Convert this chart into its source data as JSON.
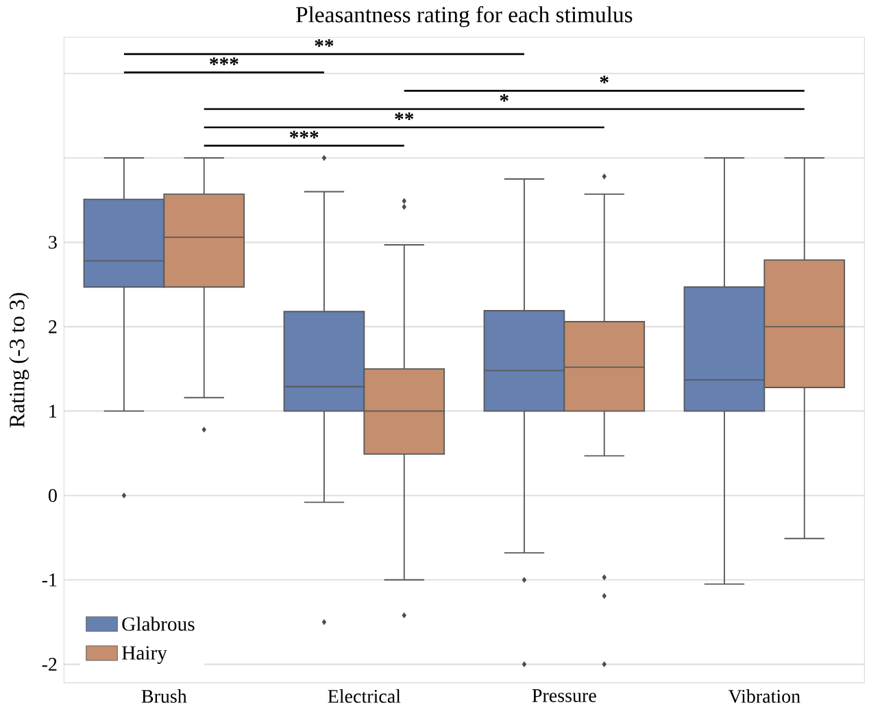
{
  "chart_data": {
    "type": "box",
    "title": "Pleasantness rating for each stimulus",
    "ylabel": "Rating (-3 to 3)",
    "categories": [
      "Brush",
      "Electrical",
      "Pressure",
      "Vibration"
    ],
    "series": [
      {
        "name": "Glabrous",
        "color": "#6680b0",
        "boxes": [
          {
            "low": 1.0,
            "q1": 2.47,
            "median": 2.78,
            "q3": 3.51,
            "high": 4.0,
            "outliers": [
              0.0
            ]
          },
          {
            "low": -0.08,
            "q1": 1.0,
            "median": 1.29,
            "q3": 2.18,
            "high": 3.6,
            "outliers": [
              4.0,
              -1.5
            ]
          },
          {
            "low": -0.68,
            "q1": 1.0,
            "median": 1.48,
            "q3": 2.19,
            "high": 3.75,
            "outliers": [
              -1.0,
              -2.0
            ]
          },
          {
            "low": -1.05,
            "q1": 1.0,
            "median": 1.37,
            "q3": 2.47,
            "high": 4.0
          }
        ]
      },
      {
        "name": "Hairy",
        "color": "#c58e6e",
        "boxes": [
          {
            "low": 1.16,
            "q1": 2.47,
            "median": 3.06,
            "q3": 3.57,
            "high": 4.0,
            "outliers": [
              0.78
            ]
          },
          {
            "low": -1.0,
            "q1": 0.49,
            "median": 1.0,
            "q3": 1.5,
            "high": 2.97,
            "outliers": [
              3.49,
              3.42,
              -1.42
            ]
          },
          {
            "low": 0.47,
            "q1": 1.0,
            "median": 1.52,
            "q3": 2.06,
            "high": 3.57,
            "outliers": [
              3.78,
              -0.97,
              -1.19,
              -2.0
            ]
          },
          {
            "low": -0.51,
            "q1": 1.28,
            "median": 2.0,
            "q3": 2.79,
            "high": 4.0
          }
        ]
      }
    ],
    "ylim": [
      -2.22,
      5.43
    ],
    "yticks": [
      -2,
      -1,
      0,
      1,
      2,
      3,
      {
        "value": 4,
        "label": null
      },
      {
        "value": 5,
        "label": null
      }
    ],
    "grid": "y",
    "legend": "bottom left",
    "marker": "diamond",
    "annotations": [
      "**",
      "***",
      "*",
      "*",
      "**",
      "***"
    ]
  }
}
